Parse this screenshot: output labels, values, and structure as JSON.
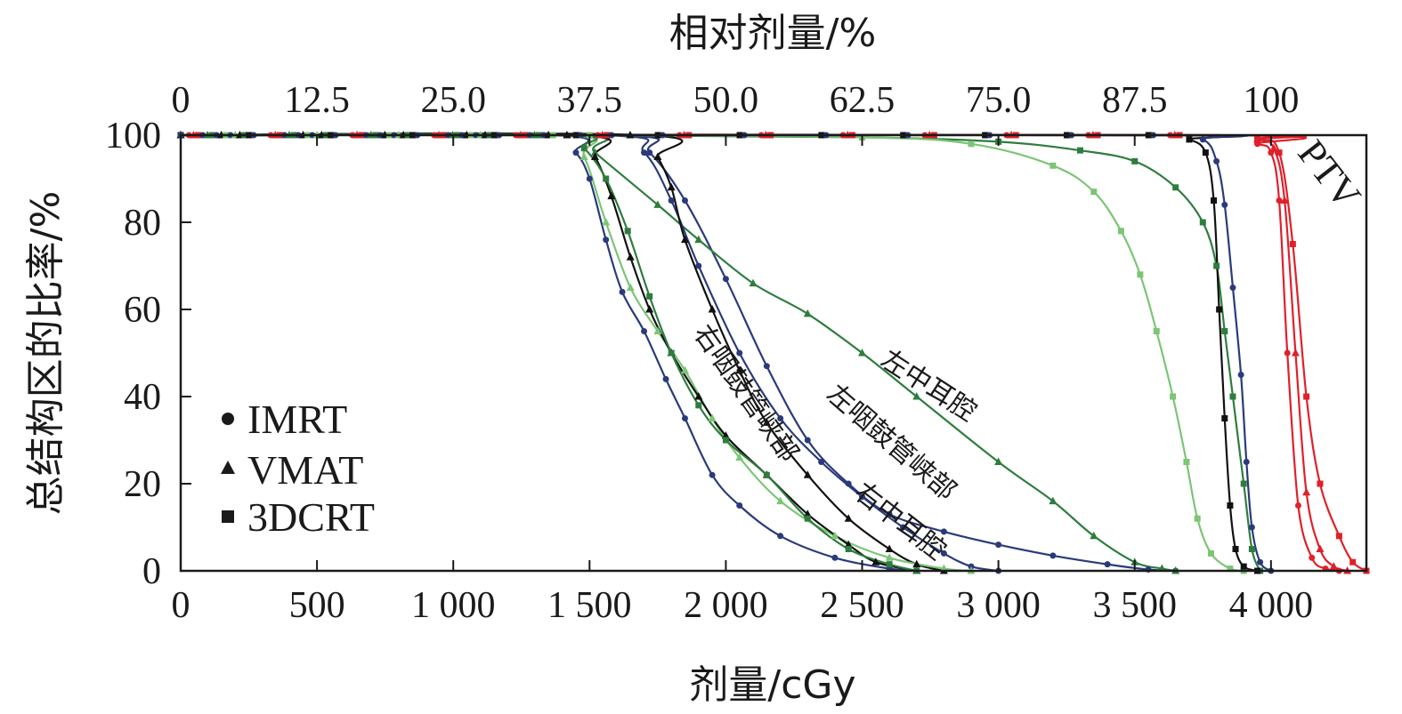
{
  "chart_data": {
    "type": "line",
    "title": "",
    "xlabel": "剂量/cGy",
    "ylabel": "总结构区的比率/%",
    "top_xlabel": "相对剂量/%",
    "xlim": [
      0,
      4350
    ],
    "ylim": [
      0,
      100
    ],
    "x_ticks": [
      0,
      500,
      1000,
      1500,
      2000,
      2500,
      3000,
      3500,
      4000
    ],
    "x_tick_labels": [
      "0",
      "500",
      "1 000",
      "1 500",
      "2 000",
      "2 500",
      "3 000",
      "3 500",
      "4 000"
    ],
    "top_tick_labels": [
      "0",
      "12.5",
      "25.0",
      "37.5",
      "50.0",
      "62.5",
      "75.0",
      "87.5",
      "100"
    ],
    "y_ticks": [
      0,
      20,
      40,
      60,
      80,
      100
    ],
    "y_tick_labels": [
      "0",
      "20",
      "40",
      "60",
      "80",
      "100"
    ],
    "grid": false,
    "legend": {
      "position": "bottom-left",
      "entries": [
        {
          "label": "IMRT",
          "marker": "circle"
        },
        {
          "label": "VMAT",
          "marker": "triangle"
        },
        {
          "label": "3DCRT",
          "marker": "square"
        }
      ]
    },
    "annotations": [
      "左中耳腔",
      "左咽鼓管峡部",
      "右咽鼓管峡部",
      "右中耳腔",
      "PTV"
    ],
    "colors": {
      "ptv": "#e0202a",
      "dark_green": "#2e7d3e",
      "light_green": "#7cc576",
      "navy": "#2b3a7a",
      "black": "#111111"
    },
    "series": [
      {
        "structure": "PTV",
        "plan": "IMRT",
        "marker": "circle",
        "color": "#e0202a",
        "points": [
          [
            0,
            100
          ],
          [
            3800,
            100
          ],
          [
            3950,
            98
          ],
          [
            4000,
            96
          ],
          [
            4030,
            85
          ],
          [
            4060,
            50
          ],
          [
            4100,
            15
          ],
          [
            4150,
            3
          ],
          [
            4200,
            0.5
          ],
          [
            4250,
            0
          ]
        ]
      },
      {
        "structure": "PTV",
        "plan": "VMAT",
        "marker": "triangle",
        "color": "#e0202a",
        "points": [
          [
            0,
            100
          ],
          [
            3800,
            100
          ],
          [
            3950,
            99
          ],
          [
            4010,
            97
          ],
          [
            4050,
            85
          ],
          [
            4090,
            50
          ],
          [
            4130,
            18
          ],
          [
            4180,
            5
          ],
          [
            4230,
            1
          ],
          [
            4280,
            0
          ]
        ]
      },
      {
        "structure": "PTV",
        "plan": "3DCRT",
        "marker": "square",
        "color": "#e0202a",
        "points": [
          [
            0,
            100
          ],
          [
            3700,
            100
          ],
          [
            3950,
            99
          ],
          [
            4030,
            96
          ],
          [
            4080,
            75
          ],
          [
            4130,
            40
          ],
          [
            4180,
            20
          ],
          [
            4250,
            8
          ],
          [
            4300,
            2
          ],
          [
            4350,
            0
          ]
        ]
      },
      {
        "structure": "左中耳腔",
        "plan": "IMRT",
        "marker": "circle",
        "color": "#2b3a7a",
        "points": [
          [
            0,
            100
          ],
          [
            1600,
            100
          ],
          [
            1720,
            96
          ],
          [
            1850,
            85
          ],
          [
            2000,
            67
          ],
          [
            2150,
            47
          ],
          [
            2300,
            30
          ],
          [
            2450,
            20
          ],
          [
            2600,
            13
          ],
          [
            2800,
            9
          ],
          [
            3000,
            6
          ],
          [
            3200,
            3.5
          ],
          [
            3400,
            1.5
          ],
          [
            3550,
            0.3
          ],
          [
            3650,
            0
          ]
        ]
      },
      {
        "structure": "左中耳腔",
        "plan": "VMAT",
        "marker": "triangle",
        "color": "#2e7d3e",
        "points": [
          [
            0,
            100
          ],
          [
            1450,
            100
          ],
          [
            1520,
            96
          ],
          [
            1750,
            84
          ],
          [
            1900,
            76
          ],
          [
            2100,
            66
          ],
          [
            2300,
            59
          ],
          [
            2500,
            50
          ],
          [
            2700,
            40
          ],
          [
            3000,
            25
          ],
          [
            3200,
            16
          ],
          [
            3350,
            8
          ],
          [
            3500,
            2
          ],
          [
            3600,
            0.5
          ],
          [
            3650,
            0
          ]
        ]
      },
      {
        "structure": "左中耳腔",
        "plan": "3DCRT",
        "marker": "square",
        "color": "#2e7d3e",
        "points": [
          [
            0,
            100
          ],
          [
            1500,
            100
          ],
          [
            2500,
            99.5
          ],
          [
            3000,
            98.5
          ],
          [
            3300,
            96.5
          ],
          [
            3500,
            94
          ],
          [
            3650,
            88
          ],
          [
            3750,
            80
          ],
          [
            3800,
            70
          ],
          [
            3830,
            55
          ],
          [
            3860,
            40
          ],
          [
            3900,
            20
          ],
          [
            3930,
            5
          ],
          [
            3960,
            0
          ]
        ]
      },
      {
        "structure": "左咽鼓管峡部",
        "plan": "IMRT",
        "marker": "circle",
        "color": "#2b3a7a",
        "points": [
          [
            0,
            100
          ],
          [
            1550,
            100
          ],
          [
            1700,
            96
          ],
          [
            1800,
            85
          ],
          [
            1900,
            70
          ],
          [
            2050,
            50
          ],
          [
            2200,
            35
          ],
          [
            2350,
            25
          ],
          [
            2500,
            17
          ],
          [
            2650,
            10
          ],
          [
            2800,
            4
          ],
          [
            2900,
            1
          ],
          [
            3000,
            0
          ]
        ]
      },
      {
        "structure": "左咽鼓管峡部",
        "plan": "VMAT",
        "marker": "triangle",
        "color": "#111111",
        "points": [
          [
            0,
            100
          ],
          [
            1700,
            100
          ],
          [
            1750,
            95
          ],
          [
            1800,
            88
          ],
          [
            1850,
            76
          ],
          [
            1950,
            60
          ],
          [
            2050,
            46
          ],
          [
            2150,
            34
          ],
          [
            2300,
            22
          ],
          [
            2450,
            12
          ],
          [
            2600,
            5
          ],
          [
            2700,
            1.5
          ],
          [
            2800,
            0
          ]
        ]
      },
      {
        "structure": "左咽鼓管峡部",
        "plan": "3DCRT",
        "marker": "square",
        "color": "#7cc576",
        "points": [
          [
            0,
            100
          ],
          [
            1500,
            100
          ],
          [
            2500,
            99.5
          ],
          [
            2900,
            98
          ],
          [
            3200,
            93
          ],
          [
            3350,
            87
          ],
          [
            3450,
            78
          ],
          [
            3520,
            68
          ],
          [
            3580,
            55
          ],
          [
            3640,
            40
          ],
          [
            3690,
            25
          ],
          [
            3730,
            12
          ],
          [
            3780,
            4
          ],
          [
            3850,
            0.5
          ],
          [
            3900,
            0
          ]
        ]
      },
      {
        "structure": "右咽鼓管峡部",
        "plan": "IMRT",
        "marker": "circle",
        "color": "#2b3a7a",
        "points": [
          [
            0,
            100
          ],
          [
            1370,
            100
          ],
          [
            1450,
            96
          ],
          [
            1500,
            90
          ],
          [
            1560,
            76
          ],
          [
            1620,
            64
          ],
          [
            1700,
            55
          ],
          [
            1780,
            44
          ],
          [
            1850,
            35
          ],
          [
            1950,
            22
          ],
          [
            2050,
            15
          ],
          [
            2200,
            8
          ],
          [
            2400,
            3
          ],
          [
            2600,
            0.5
          ],
          [
            2700,
            0
          ]
        ]
      },
      {
        "structure": "右咽鼓管峡部",
        "plan": "VMAT",
        "marker": "triangle",
        "color": "#7cc576",
        "points": [
          [
            0,
            100
          ],
          [
            1400,
            100
          ],
          [
            1480,
            95
          ],
          [
            1560,
            80
          ],
          [
            1650,
            65
          ],
          [
            1750,
            55
          ],
          [
            1850,
            46
          ],
          [
            1950,
            35
          ],
          [
            2050,
            26
          ],
          [
            2200,
            16
          ],
          [
            2400,
            8
          ],
          [
            2600,
            3
          ],
          [
            2800,
            0.5
          ],
          [
            2900,
            0
          ]
        ]
      },
      {
        "structure": "右中耳腔",
        "plan": "VMAT",
        "marker": "triangle",
        "color": "#111111",
        "points": [
          [
            0,
            100
          ],
          [
            1450,
            100
          ],
          [
            1520,
            95
          ],
          [
            1580,
            86
          ],
          [
            1650,
            72
          ],
          [
            1720,
            60
          ],
          [
            1800,
            50
          ],
          [
            1900,
            40
          ],
          [
            2000,
            31
          ],
          [
            2150,
            22
          ],
          [
            2300,
            13
          ],
          [
            2450,
            6
          ],
          [
            2550,
            2
          ],
          [
            2700,
            0
          ]
        ]
      },
      {
        "structure": "右中耳腔",
        "plan": "3DCRT",
        "marker": "square",
        "color": "#2e7d3e",
        "points": [
          [
            0,
            100
          ],
          [
            1400,
            100
          ],
          [
            1480,
            97
          ],
          [
            1560,
            90
          ],
          [
            1640,
            78
          ],
          [
            1720,
            63
          ],
          [
            1800,
            50
          ],
          [
            1900,
            38
          ],
          [
            2000,
            30
          ],
          [
            2150,
            22
          ],
          [
            2300,
            12
          ],
          [
            2450,
            5
          ],
          [
            2600,
            1.5
          ],
          [
            2700,
            0
          ]
        ]
      },
      {
        "structure": "PTV",
        "plan": "3DCRT",
        "marker": "square",
        "color": "#111111",
        "points": [
          [
            0,
            100
          ],
          [
            3600,
            100
          ],
          [
            3700,
            99
          ],
          [
            3760,
            96
          ],
          [
            3790,
            85
          ],
          [
            3810,
            60
          ],
          [
            3830,
            35
          ],
          [
            3850,
            15
          ],
          [
            3870,
            5
          ],
          [
            3900,
            1
          ],
          [
            3950,
            0
          ]
        ]
      },
      {
        "structure": "PTV",
        "plan": "IMRT",
        "marker": "circle",
        "color": "#2b3a7a",
        "points": [
          [
            0,
            100
          ],
          [
            3600,
            100
          ],
          [
            3750,
            99
          ],
          [
            3800,
            94
          ],
          [
            3830,
            84
          ],
          [
            3860,
            65
          ],
          [
            3890,
            45
          ],
          [
            3910,
            25
          ],
          [
            3930,
            10
          ],
          [
            3960,
            2
          ],
          [
            4000,
            0
          ]
        ]
      }
    ]
  }
}
